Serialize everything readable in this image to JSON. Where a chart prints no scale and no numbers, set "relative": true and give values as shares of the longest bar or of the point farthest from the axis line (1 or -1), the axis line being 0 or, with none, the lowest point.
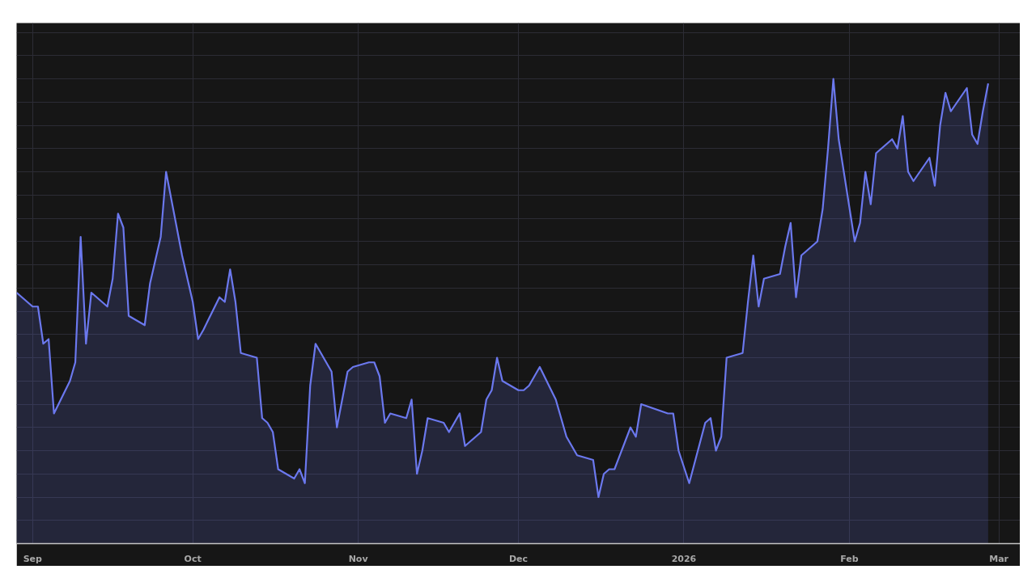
{
  "chart_data": {
    "type": "area",
    "relative": true,
    "grid": true,
    "xlim": [
      "2025-08-29",
      "2026-03-05"
    ],
    "xticks": [
      {
        "value": "2025-09-01",
        "label": "Sep"
      },
      {
        "value": "2025-10-01",
        "label": "Oct"
      },
      {
        "value": "2025-11-01",
        "label": "Nov"
      },
      {
        "value": "2025-12-01",
        "label": "Dec"
      },
      {
        "value": "2026-01-01",
        "label": "2026"
      },
      {
        "value": "2026-02-01",
        "label": "Feb"
      },
      {
        "value": "2026-03-01",
        "label": "Mar"
      }
    ],
    "x": [
      "2025-08-29",
      "2025-09-01",
      "2025-09-02",
      "2025-09-03",
      "2025-09-04",
      "2025-09-05",
      "2025-09-08",
      "2025-09-09",
      "2025-09-10",
      "2025-09-11",
      "2025-09-12",
      "2025-09-15",
      "2025-09-16",
      "2025-09-17",
      "2025-09-18",
      "2025-09-19",
      "2025-09-22",
      "2025-09-23",
      "2025-09-24",
      "2025-09-25",
      "2025-09-26",
      "2025-09-29",
      "2025-09-30",
      "2025-10-01",
      "2025-10-02",
      "2025-10-03",
      "2025-10-06",
      "2025-10-07",
      "2025-10-08",
      "2025-10-09",
      "2025-10-10",
      "2025-10-13",
      "2025-10-14",
      "2025-10-15",
      "2025-10-16",
      "2025-10-17",
      "2025-10-20",
      "2025-10-21",
      "2025-10-22",
      "2025-10-23",
      "2025-10-24",
      "2025-10-27",
      "2025-10-28",
      "2025-10-29",
      "2025-10-30",
      "2025-10-31",
      "2025-11-03",
      "2025-11-04",
      "2025-11-05",
      "2025-11-06",
      "2025-11-07",
      "2025-11-10",
      "2025-11-11",
      "2025-11-12",
      "2025-11-13",
      "2025-11-14",
      "2025-11-17",
      "2025-11-18",
      "2025-11-19",
      "2025-11-20",
      "2025-11-21",
      "2025-11-24",
      "2025-11-25",
      "2025-11-26",
      "2025-11-27",
      "2025-11-28",
      "2025-12-01",
      "2025-12-02",
      "2025-12-03",
      "2025-12-04",
      "2025-12-05",
      "2025-12-08",
      "2025-12-09",
      "2025-12-10",
      "2025-12-11",
      "2025-12-12",
      "2025-12-15",
      "2025-12-16",
      "2025-12-17",
      "2025-12-18",
      "2025-12-19",
      "2025-12-22",
      "2025-12-23",
      "2025-12-24",
      "2025-12-29",
      "2025-12-30",
      "2025-12-31",
      "2026-01-02",
      "2026-01-05",
      "2026-01-06",
      "2026-01-07",
      "2026-01-08",
      "2026-01-09",
      "2026-01-12",
      "2026-01-13",
      "2026-01-14",
      "2026-01-15",
      "2026-01-16",
      "2026-01-19",
      "2026-01-20",
      "2026-01-21",
      "2026-01-22",
      "2026-01-23",
      "2026-01-26",
      "2026-01-27",
      "2026-01-28",
      "2026-01-29",
      "2026-01-30",
      "2026-02-02",
      "2026-02-03",
      "2026-02-04",
      "2026-02-05",
      "2026-02-06",
      "2026-02-09",
      "2026-02-10",
      "2026-02-11",
      "2026-02-12",
      "2026-02-13",
      "2026-02-16",
      "2026-02-17",
      "2026-02-18",
      "2026-02-19",
      "2026-02-20",
      "2026-02-23",
      "2026-02-24",
      "2026-02-25",
      "2026-02-26",
      "2026-02-27"
    ],
    "series": [
      {
        "color": "#6b78ee",
        "values": [
          0.54,
          0.51,
          0.51,
          0.43,
          0.44,
          0.28,
          0.35,
          0.39,
          0.66,
          0.43,
          0.54,
          0.51,
          0.57,
          0.71,
          0.68,
          0.49,
          0.47,
          0.56,
          0.61,
          0.66,
          0.8,
          0.62,
          0.57,
          0.52,
          0.44,
          0.46,
          0.53,
          0.52,
          0.59,
          0.52,
          0.41,
          0.4,
          0.27,
          0.26,
          0.24,
          0.16,
          0.14,
          0.16,
          0.13,
          0.34,
          0.43,
          0.37,
          0.25,
          0.31,
          0.37,
          0.38,
          0.39,
          0.39,
          0.36,
          0.26,
          0.28,
          0.27,
          0.31,
          0.15,
          0.2,
          0.27,
          0.26,
          0.24,
          0.26,
          0.28,
          0.21,
          0.24,
          0.31,
          0.33,
          0.4,
          0.35,
          0.33,
          0.33,
          0.34,
          0.36,
          0.38,
          0.31,
          0.27,
          0.23,
          0.21,
          0.19,
          0.18,
          0.1,
          0.15,
          0.16,
          0.16,
          0.25,
          0.23,
          0.3,
          0.28,
          0.28,
          0.2,
          0.13,
          0.26,
          0.27,
          0.2,
          0.23,
          0.4,
          0.41,
          0.52,
          0.62,
          0.51,
          0.57,
          0.58,
          0.64,
          0.69,
          0.53,
          0.62,
          0.65,
          0.72,
          0.85,
          1,
          0.87,
          0.65,
          0.69,
          0.8,
          0.73,
          0.84,
          0.87,
          0.85,
          0.92,
          0.8,
          0.78,
          0.83,
          0.77,
          0.9,
          0.97,
          0.93,
          0.98,
          0.88,
          0.86,
          0.93,
          0.99
        ]
      }
    ]
  }
}
